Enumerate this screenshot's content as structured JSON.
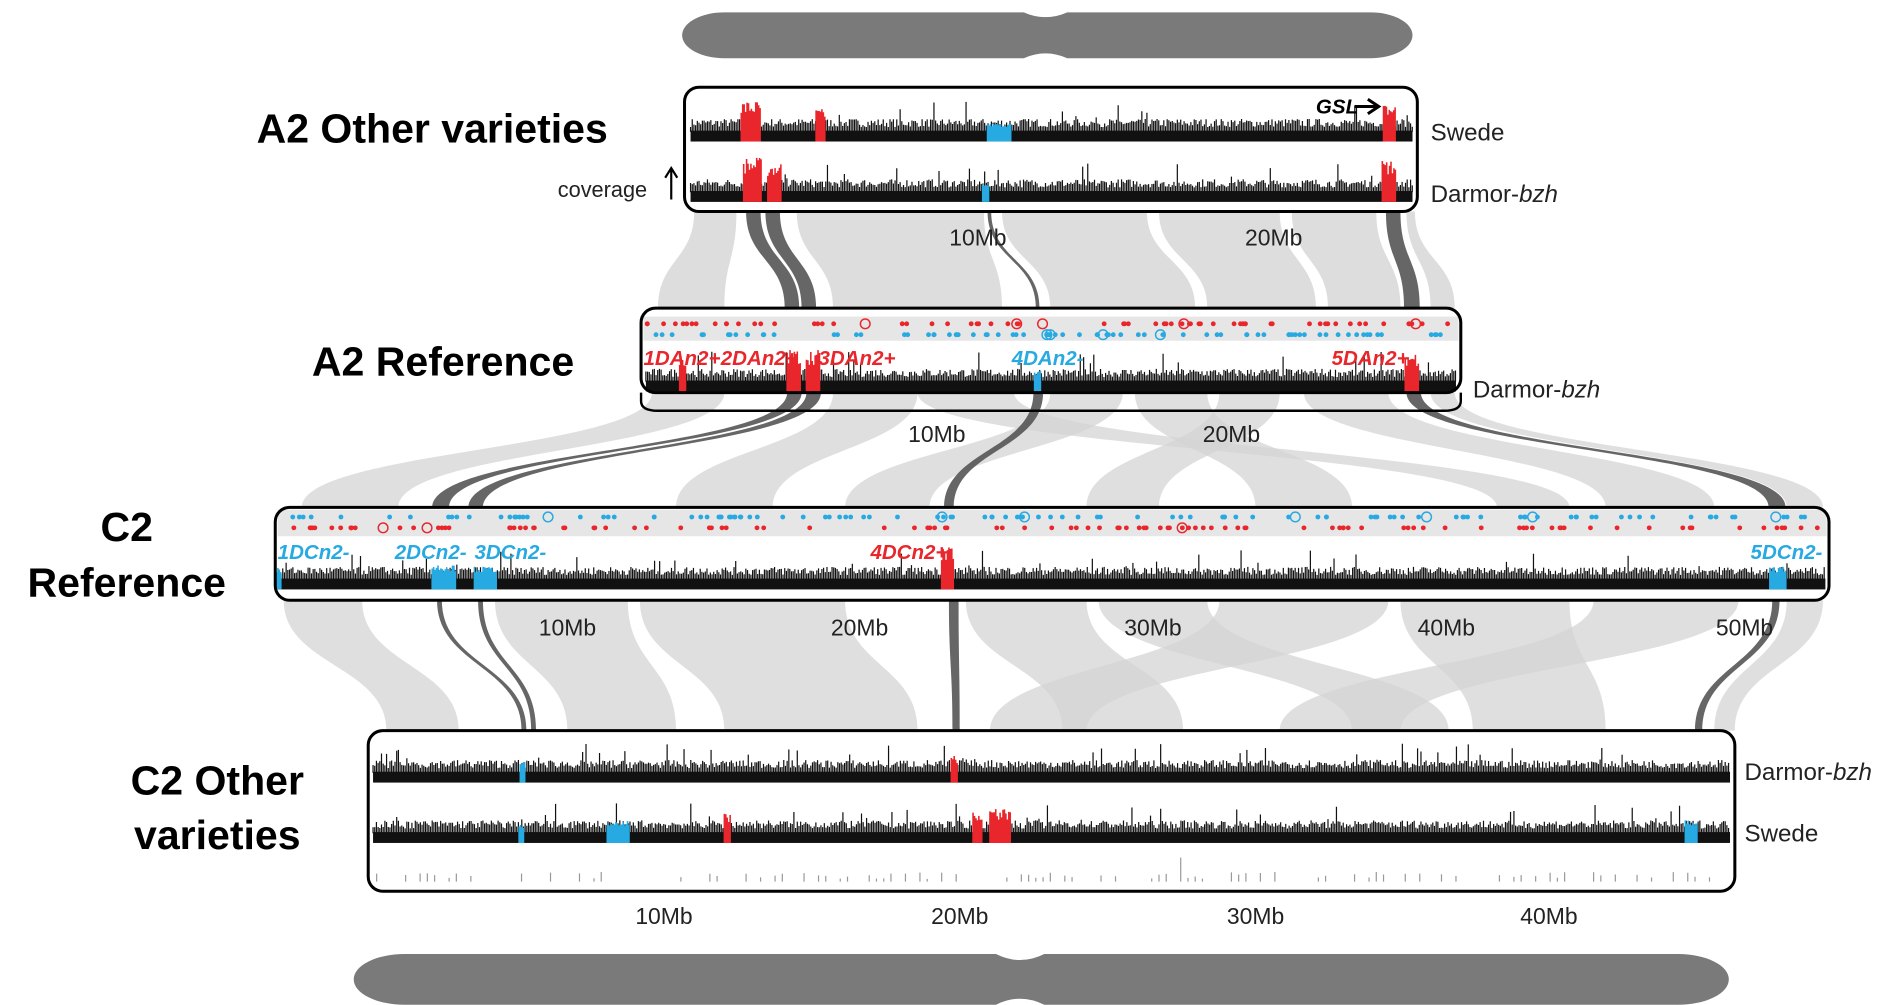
{
  "panels": [
    {
      "title": [
        "A2 Other varieties"
      ],
      "tracks": [
        {
          "name": "Swede"
        },
        {
          "name": "Darmor-",
          "italic": "bzh"
        }
      ],
      "gene": "GSL",
      "coverage_label": "coverage",
      "axis_labels": [
        "10Mb",
        "20Mb"
      ]
    },
    {
      "title": [
        "A2 Reference"
      ],
      "tracks": [
        {
          "name": "Darmor-",
          "italic": "bzh"
        }
      ],
      "loci": [
        {
          "label": "1DAn2+",
          "color": "#e8262b"
        },
        {
          "label": "2DAn2+",
          "color": "#e8262b"
        },
        {
          "label": "3DAn2+",
          "color": "#e8262b"
        },
        {
          "label": "4DAn2-",
          "color": "#27a9e1"
        },
        {
          "label": "5DAn2+",
          "color": "#e8262b"
        }
      ],
      "axis_labels": [
        "10Mb",
        "20Mb"
      ]
    },
    {
      "title": [
        "C2",
        "Reference"
      ],
      "loci": [
        {
          "label": "1DCn2-",
          "color": "#27a9e1"
        },
        {
          "label": "2DCn2-",
          "color": "#27a9e1"
        },
        {
          "label": "3DCn2-",
          "color": "#27a9e1"
        },
        {
          "label": "4DCn2+",
          "color": "#e8262b"
        },
        {
          "label": "5DCn2-",
          "color": "#27a9e1"
        }
      ],
      "axis_labels": [
        "10Mb",
        "20Mb",
        "30Mb",
        "40Mb",
        "50Mb"
      ]
    },
    {
      "title": [
        "C2 Other",
        "varieties"
      ],
      "tracks": [
        {
          "name": "Darmor-",
          "italic": "bzh"
        },
        {
          "name": "Swede"
        }
      ],
      "axis_labels": [
        "10Mb",
        "20Mb",
        "30Mb",
        "40Mb"
      ]
    }
  ]
}
